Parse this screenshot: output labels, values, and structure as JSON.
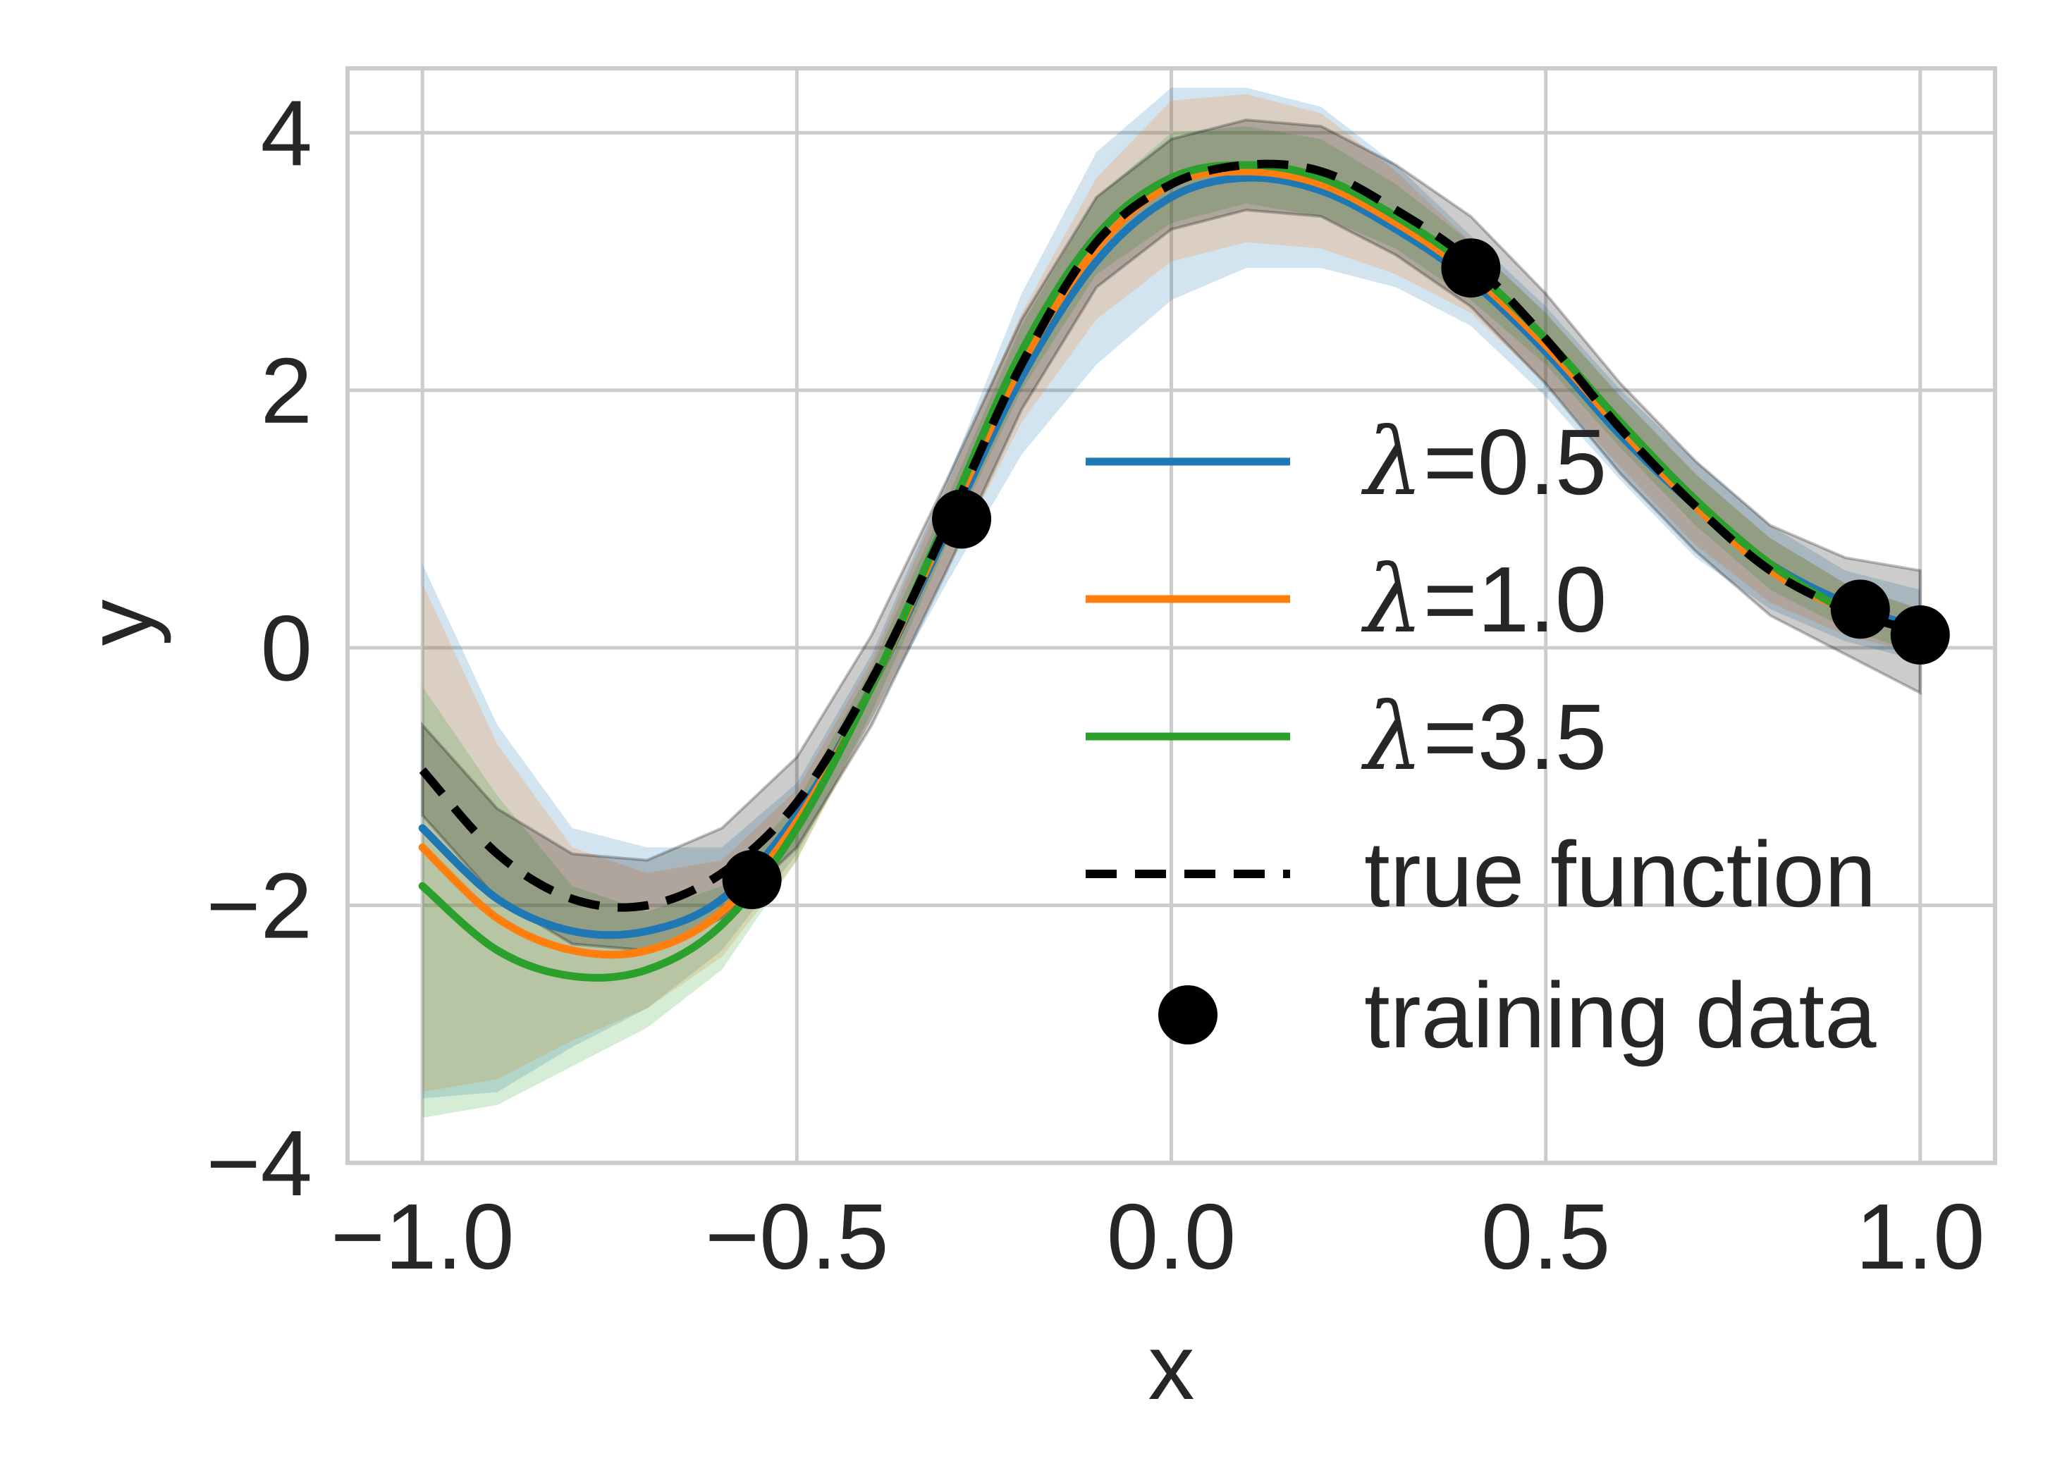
{
  "chart_data": {
    "type": "line",
    "title": "",
    "xlabel": "x",
    "ylabel": "y",
    "xlim": [
      -1.1,
      1.1
    ],
    "ylim": [
      -4.0,
      4.5
    ],
    "grid": true,
    "legend_position": "center-right",
    "xticks": [
      {
        "value": -1.0,
        "label": "−1.0"
      },
      {
        "value": -0.5,
        "label": "−0.5"
      },
      {
        "value": 0.0,
        "label": "0.0"
      },
      {
        "value": 0.5,
        "label": "0.5"
      },
      {
        "value": 1.0,
        "label": "1.0"
      }
    ],
    "yticks": [
      {
        "value": -4,
        "label": "−4"
      },
      {
        "value": -2,
        "label": "−2"
      },
      {
        "value": 0,
        "label": "0"
      },
      {
        "value": 2,
        "label": "2"
      },
      {
        "value": 4,
        "label": "4"
      }
    ],
    "x": [
      -1.0,
      -0.9,
      -0.8,
      -0.7,
      -0.6,
      -0.5,
      -0.4,
      -0.3,
      -0.2,
      -0.1,
      0.0,
      0.1,
      0.2,
      0.3,
      0.4,
      0.5,
      0.6,
      0.7,
      0.8,
      0.9,
      1.0
    ],
    "series": [
      {
        "name": "λ=0.5",
        "lambda_symbol": "λ",
        "value_label": "=0.5",
        "color": "#1f77b4",
        "style": "solid",
        "values": [
          -1.4,
          -1.95,
          -2.2,
          -2.2,
          -1.95,
          -1.3,
          -0.3,
          0.9,
          2.1,
          3.0,
          3.5,
          3.65,
          3.55,
          3.25,
          2.85,
          2.3,
          1.65,
          1.1,
          0.65,
          0.35,
          0.15
        ],
        "upper": [
          0.65,
          -0.6,
          -1.4,
          -1.55,
          -1.55,
          -1.05,
          -0.05,
          1.3,
          2.75,
          3.85,
          4.35,
          4.35,
          4.2,
          3.75,
          3.2,
          2.65,
          2.0,
          1.45,
          0.95,
          0.6,
          0.45
        ],
        "lower": [
          -3.5,
          -3.45,
          -3.1,
          -2.8,
          -2.35,
          -1.6,
          -0.55,
          0.5,
          1.5,
          2.2,
          2.7,
          2.95,
          2.95,
          2.8,
          2.5,
          1.95,
          1.3,
          0.7,
          0.3,
          0.05,
          -0.1
        ]
      },
      {
        "name": "λ=1.0",
        "lambda_symbol": "λ",
        "value_label": "=1.0",
        "color": "#ff7f0e",
        "style": "solid",
        "values": [
          -1.55,
          -2.1,
          -2.35,
          -2.35,
          -2.05,
          -1.35,
          -0.3,
          0.95,
          2.2,
          3.1,
          3.6,
          3.7,
          3.6,
          3.3,
          2.9,
          2.35,
          1.7,
          1.1,
          0.6,
          0.3,
          0.12
        ],
        "upper": [
          0.5,
          -0.75,
          -1.55,
          -1.75,
          -1.65,
          -1.1,
          -0.1,
          1.25,
          2.6,
          3.65,
          4.25,
          4.3,
          4.15,
          3.7,
          3.15,
          2.6,
          1.95,
          1.35,
          0.85,
          0.5,
          0.3
        ],
        "lower": [
          -3.45,
          -3.35,
          -3.05,
          -2.8,
          -2.4,
          -1.65,
          -0.55,
          0.6,
          1.75,
          2.55,
          3.0,
          3.15,
          3.1,
          2.9,
          2.6,
          2.05,
          1.4,
          0.8,
          0.35,
          0.1,
          -0.05
        ]
      },
      {
        "name": "λ=3.5",
        "lambda_symbol": "λ",
        "value_label": "=3.5",
        "color": "#2ca02c",
        "style": "solid",
        "values": [
          -1.85,
          -2.35,
          -2.55,
          -2.5,
          -2.15,
          -1.4,
          -0.3,
          1.0,
          2.3,
          3.2,
          3.65,
          3.75,
          3.65,
          3.35,
          2.95,
          2.4,
          1.75,
          1.15,
          0.65,
          0.3,
          0.12
        ],
        "upper": [
          -0.3,
          -1.15,
          -1.85,
          -2.05,
          -1.85,
          -1.2,
          -0.15,
          1.15,
          2.5,
          3.5,
          4.0,
          4.05,
          3.95,
          3.6,
          3.15,
          2.6,
          1.95,
          1.35,
          0.85,
          0.5,
          0.3
        ],
        "lower": [
          -3.65,
          -3.55,
          -3.25,
          -2.95,
          -2.5,
          -1.65,
          -0.5,
          0.8,
          2.0,
          2.9,
          3.3,
          3.45,
          3.35,
          3.1,
          2.7,
          2.2,
          1.55,
          0.95,
          0.45,
          0.15,
          -0.05
        ]
      },
      {
        "name": "true function",
        "color": "#000000",
        "style": "dashed",
        "values": [
          -0.95,
          -1.6,
          -1.95,
          -2.0,
          -1.75,
          -1.2,
          -0.25,
          0.95,
          2.2,
          3.15,
          3.6,
          3.75,
          3.7,
          3.4,
          3.0,
          2.4,
          1.7,
          1.1,
          0.6,
          0.3,
          0.12
        ],
        "upper": [
          -0.6,
          -1.25,
          -1.6,
          -1.65,
          -1.4,
          -0.85,
          0.1,
          1.3,
          2.55,
          3.5,
          3.95,
          4.1,
          4.05,
          3.75,
          3.35,
          2.75,
          2.05,
          1.45,
          0.95,
          0.7,
          0.6
        ],
        "lower": [
          -1.3,
          -1.95,
          -2.3,
          -2.35,
          -2.1,
          -1.55,
          -0.6,
          0.6,
          1.85,
          2.8,
          3.25,
          3.4,
          3.35,
          3.05,
          2.65,
          2.05,
          1.35,
          0.75,
          0.25,
          -0.05,
          -0.35
        ]
      }
    ],
    "scatter": {
      "name": "training data",
      "color": "#000000",
      "points": [
        {
          "x": -0.56,
          "y": -1.8
        },
        {
          "x": -0.28,
          "y": 1.0
        },
        {
          "x": 0.4,
          "y": 2.95
        },
        {
          "x": 0.92,
          "y": 0.3
        },
        {
          "x": 1.0,
          "y": 0.1
        }
      ]
    }
  }
}
